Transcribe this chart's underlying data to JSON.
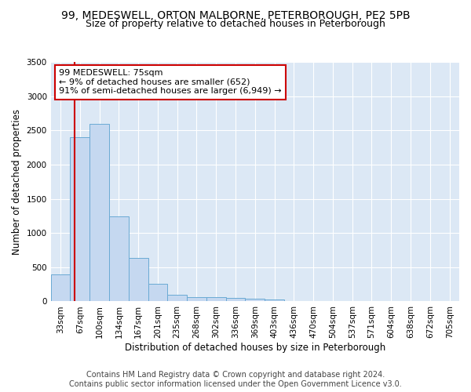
{
  "title_line1": "99, MEDESWELL, ORTON MALBORNE, PETERBOROUGH, PE2 5PB",
  "title_line2": "Size of property relative to detached houses in Peterborough",
  "xlabel": "Distribution of detached houses by size in Peterborough",
  "ylabel": "Number of detached properties",
  "bin_labels": [
    "33sqm",
    "67sqm",
    "100sqm",
    "134sqm",
    "167sqm",
    "201sqm",
    "235sqm",
    "268sqm",
    "302sqm",
    "336sqm",
    "369sqm",
    "403sqm",
    "436sqm",
    "470sqm",
    "504sqm",
    "537sqm",
    "571sqm",
    "604sqm",
    "638sqm",
    "672sqm",
    "705sqm"
  ],
  "bar_values": [
    390,
    2400,
    2600,
    1240,
    640,
    255,
    100,
    65,
    60,
    50,
    40,
    30,
    0,
    0,
    0,
    0,
    0,
    0,
    0,
    0,
    0
  ],
  "bar_color": "#c5d8f0",
  "bar_edge_color": "#6aaad4",
  "vline_color": "#cc0000",
  "vline_x_bar_index": 1.24,
  "annotation_line1": "99 MEDESWELL: 75sqm",
  "annotation_line2": "← 9% of detached houses are smaller (652)",
  "annotation_line3": "91% of semi-detached houses are larger (6,949) →",
  "annotation_box_facecolor": "#ffffff",
  "annotation_box_edgecolor": "#cc0000",
  "ylim": [
    0,
    3500
  ],
  "yticks": [
    0,
    500,
    1000,
    1500,
    2000,
    2500,
    3000,
    3500
  ],
  "fig_bg_color": "#ffffff",
  "plot_bg_color": "#dce8f5",
  "grid_color": "#ffffff",
  "title_fontsize": 10,
  "subtitle_fontsize": 9,
  "axis_label_fontsize": 8.5,
  "tick_fontsize": 7.5,
  "annotation_fontsize": 8,
  "footer_fontsize": 7,
  "footer_line1": "Contains HM Land Registry data © Crown copyright and database right 2024.",
  "footer_line2": "Contains public sector information licensed under the Open Government Licence v3.0."
}
